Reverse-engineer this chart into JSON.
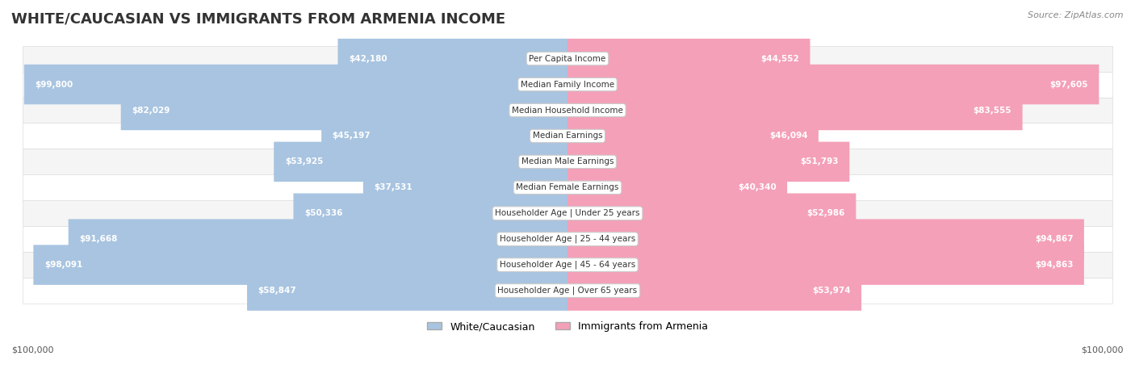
{
  "title": "WHITE/CAUCASIAN VS IMMIGRANTS FROM ARMENIA INCOME",
  "source": "Source: ZipAtlas.com",
  "categories": [
    "Per Capita Income",
    "Median Family Income",
    "Median Household Income",
    "Median Earnings",
    "Median Male Earnings",
    "Median Female Earnings",
    "Householder Age | Under 25 years",
    "Householder Age | 25 - 44 years",
    "Householder Age | 45 - 64 years",
    "Householder Age | Over 65 years"
  ],
  "white_values": [
    42180,
    99800,
    82029,
    45197,
    53925,
    37531,
    50336,
    91668,
    98091,
    58847
  ],
  "armenia_values": [
    44552,
    97605,
    83555,
    46094,
    51793,
    40340,
    52986,
    94867,
    94863,
    53974
  ],
  "white_labels": [
    "$42,180",
    "$99,800",
    "$82,029",
    "$45,197",
    "$53,925",
    "$37,531",
    "$50,336",
    "$91,668",
    "$98,091",
    "$58,847"
  ],
  "armenia_labels": [
    "$44,552",
    "$97,605",
    "$83,555",
    "$46,094",
    "$51,793",
    "$40,340",
    "$52,986",
    "$94,867",
    "$94,863",
    "$53,974"
  ],
  "max_value": 100000,
  "white_color": "#a8c4e0",
  "armenia_color": "#f4a0b8",
  "white_color_dark": "#6b9fc8",
  "armenia_color_dark": "#f06090",
  "white_label_color_inside": "#ffffff",
  "armenia_label_color_inside": "#ffffff",
  "white_label_color_outside": "#555555",
  "armenia_label_color_outside": "#555555",
  "bg_color": "#ffffff",
  "row_bg_light": "#f5f5f5",
  "row_bg_white": "#ffffff",
  "legend_white": "White/Caucasian",
  "legend_armenia": "Immigrants from Armenia",
  "xlabel_left": "$100,000",
  "xlabel_right": "$100,000"
}
